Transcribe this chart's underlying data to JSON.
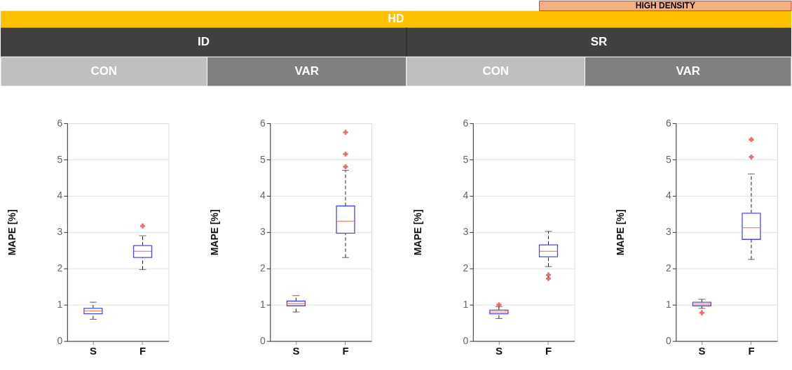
{
  "chart_data": [
    {
      "type": "box",
      "title": "CON",
      "annotations": [
        "HIGH DENSITY",
        "HD",
        "ID"
      ],
      "ylabel": "MAPE [%]",
      "categories": [
        "S",
        "F"
      ],
      "ylim": [
        0,
        6
      ],
      "yticks": [
        0,
        1,
        2,
        3,
        4,
        5,
        6
      ],
      "grid": "y",
      "marker": "cross",
      "series": [
        {
          "color": "#4a4ae0",
          "boxes": [
            {
              "low": 0.6,
              "q1": 0.75,
              "median": 0.83,
              "q3": 0.9,
              "high": 1.07
            },
            {
              "low": 1.97,
              "q1": 2.3,
              "median": 2.47,
              "q3": 2.63,
              "high": 2.9,
              "outliers": [
                3.17
              ]
            }
          ]
        }
      ]
    },
    {
      "type": "box",
      "title": "VAR",
      "ylabel": "MAPE [%]",
      "categories": [
        "S",
        "F"
      ],
      "ylim": [
        0,
        6
      ],
      "yticks": [
        0,
        1,
        2,
        3,
        4,
        5,
        6
      ],
      "grid": "y",
      "marker": "cross",
      "series": [
        {
          "color": "#4a4ae0",
          "boxes": [
            {
              "low": 0.8,
              "q1": 0.97,
              "median": 1.03,
              "q3": 1.1,
              "high": 1.25
            },
            {
              "low": 2.3,
              "q1": 2.97,
              "median": 3.3,
              "q3": 3.72,
              "high": 4.7,
              "outliers": [
                4.8,
                5.15,
                5.75
              ]
            }
          ]
        }
      ]
    },
    {
      "type": "box",
      "title": "CON",
      "annotations": [
        "SR"
      ],
      "ylabel": "MAPE [%]",
      "categories": [
        "S",
        "F"
      ],
      "ylim": [
        0,
        6
      ],
      "yticks": [
        0,
        1,
        2,
        3,
        4,
        5,
        6
      ],
      "grid": "y",
      "marker": "cross",
      "series": [
        {
          "color": "#4a4ae0",
          "boxes": [
            {
              "low": 0.62,
              "q1": 0.75,
              "median": 0.8,
              "q3": 0.85,
              "high": 0.95,
              "outliers": [
                1.0
              ]
            },
            {
              "low": 2.05,
              "q1": 2.32,
              "median": 2.47,
              "q3": 2.65,
              "high": 3.02,
              "outliers": [
                1.82,
                1.72
              ]
            }
          ]
        }
      ]
    },
    {
      "type": "box",
      "title": "VAR",
      "ylabel": "MAPE [%]",
      "categories": [
        "S",
        "F"
      ],
      "ylim": [
        0,
        6
      ],
      "yticks": [
        0,
        1,
        2,
        3,
        4,
        5,
        6
      ],
      "grid": "y",
      "marker": "cross",
      "series": [
        {
          "color": "#4a4ae0",
          "boxes": [
            {
              "low": 0.9,
              "q1": 0.97,
              "median": 1.02,
              "q3": 1.07,
              "high": 1.15,
              "outliers": [
                0.78
              ]
            },
            {
              "low": 2.25,
              "q1": 2.8,
              "median": 3.12,
              "q3": 3.52,
              "high": 4.6,
              "outliers": [
                5.07,
                5.55
              ]
            }
          ]
        }
      ]
    }
  ]
}
